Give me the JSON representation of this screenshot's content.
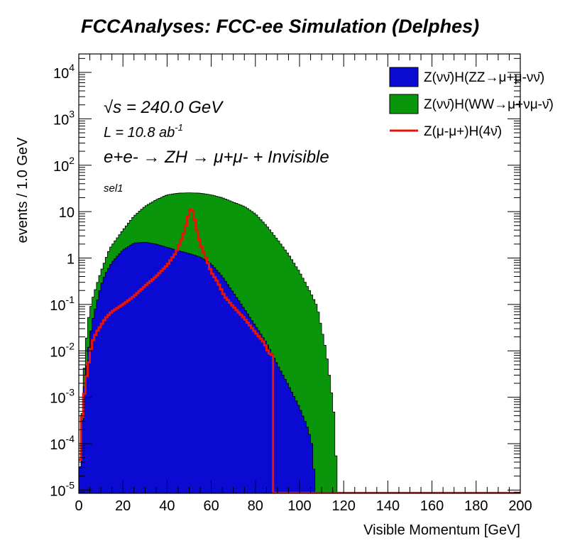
{
  "title": "FCCAnalyses: FCC-ee Simulation (Delphes)",
  "annotations": {
    "sqrt_s_symbol": "√s",
    "sqrt_s_text": " = 240.0 GeV",
    "lumi_text": "L = 10.8 ab",
    "lumi_exp": "-1",
    "process_text": "e+e- → ZH → μ+μ- + Invisible",
    "selection": "sel1"
  },
  "chart_data": {
    "type": "area",
    "xlabel": "Visible Momentum [GeV]",
    "ylabel": "events / 1.0 GeV",
    "xlim": [
      0,
      200
    ],
    "ylim": [
      8.5e-06,
      25000
    ],
    "log_y": true,
    "bin_width": 1,
    "x_ticks": [
      "0",
      "20",
      "40",
      "60",
      "80",
      "100",
      "120",
      "140",
      "160",
      "180",
      "200"
    ],
    "y_ticks": [
      {
        "value": 1e-05,
        "base": "10",
        "exp": "-5"
      },
      {
        "value": 0.0001,
        "base": "10",
        "exp": "-4"
      },
      {
        "value": 0.001,
        "base": "10",
        "exp": "-3"
      },
      {
        "value": 0.01,
        "base": "10",
        "exp": "-2"
      },
      {
        "value": 0.1,
        "base": "10",
        "exp": "-1"
      },
      {
        "value": 1,
        "base": "1",
        "exp": ""
      },
      {
        "value": 10,
        "base": "10",
        "exp": ""
      },
      {
        "value": 100,
        "base": "10",
        "exp": "2"
      },
      {
        "value": 1000,
        "base": "10",
        "exp": "3"
      },
      {
        "value": 10000,
        "base": "10",
        "exp": "4"
      }
    ],
    "legend_position": "top-right",
    "stack_total_points": [
      [
        0,
        1e-05
      ],
      [
        1,
        0.0001
      ],
      [
        2,
        0.002
      ],
      [
        4,
        0.04
      ],
      [
        6,
        0.12
      ],
      [
        8,
        0.25
      ],
      [
        10,
        0.5
      ],
      [
        14,
        1.6
      ],
      [
        20,
        4
      ],
      [
        25,
        8
      ],
      [
        30,
        13
      ],
      [
        35,
        18
      ],
      [
        40,
        23
      ],
      [
        45,
        25
      ],
      [
        50,
        25.5
      ],
      [
        55,
        25
      ],
      [
        60,
        23
      ],
      [
        65,
        20
      ],
      [
        70,
        16
      ],
      [
        75,
        13
      ],
      [
        80,
        9
      ],
      [
        85,
        5
      ],
      [
        90,
        2.5
      ],
      [
        95,
        1.2
      ],
      [
        100,
        0.5
      ],
      [
        105,
        0.18
      ],
      [
        108,
        0.09
      ],
      [
        110,
        0.03
      ],
      [
        112,
        0.01
      ],
      [
        114,
        0.002
      ],
      [
        116,
        0.0003
      ],
      [
        117,
        1e-05
      ]
    ],
    "series": [
      {
        "name": "Z(νν̄)H(ZZ→μ+μ-νν̄)",
        "style": "fill",
        "color": "#0a0ad2",
        "points": [
          [
            0,
            1e-05
          ],
          [
            1,
            0.0001
          ],
          [
            2,
            0.001
          ],
          [
            4,
            0.008
          ],
          [
            6,
            0.04
          ],
          [
            8,
            0.1
          ],
          [
            10,
            0.25
          ],
          [
            12,
            0.45
          ],
          [
            15,
            0.8
          ],
          [
            20,
            1.5
          ],
          [
            25,
            2.1
          ],
          [
            30,
            2.2
          ],
          [
            35,
            2.0
          ],
          [
            40,
            1.7
          ],
          [
            45,
            1.45
          ],
          [
            50,
            1.25
          ],
          [
            55,
            1.05
          ],
          [
            60,
            0.75
          ],
          [
            65,
            0.4
          ],
          [
            70,
            0.18
          ],
          [
            75,
            0.08
          ],
          [
            80,
            0.035
          ],
          [
            85,
            0.015
          ],
          [
            90,
            0.005
          ],
          [
            95,
            0.0018
          ],
          [
            100,
            0.0006
          ],
          [
            104,
            0.0002
          ],
          [
            106,
            8e-05
          ],
          [
            107,
            1e-05
          ]
        ]
      },
      {
        "name": "Z(νν̄)H(WW→μ+νμ-ν̄)",
        "style": "fill",
        "color": "#0a960a",
        "points": []
      },
      {
        "name": "Z(μ-μ+)H(4ν̄)",
        "style": "line",
        "color": "#e6140a",
        "points": [
          [
            0,
            1e-05
          ],
          [
            1,
            0.0002
          ],
          [
            2,
            0.0007
          ],
          [
            3,
            0.002
          ],
          [
            4,
            0.004
          ],
          [
            5,
            0.008
          ],
          [
            6,
            0.015
          ],
          [
            8,
            0.025
          ],
          [
            10,
            0.035
          ],
          [
            12,
            0.05
          ],
          [
            15,
            0.07
          ],
          [
            20,
            0.1
          ],
          [
            25,
            0.15
          ],
          [
            30,
            0.25
          ],
          [
            35,
            0.4
          ],
          [
            40,
            0.7
          ],
          [
            44,
            1.3
          ],
          [
            47,
            2.8
          ],
          [
            49,
            6
          ],
          [
            50,
            10
          ],
          [
            51,
            12
          ],
          [
            52,
            9
          ],
          [
            53,
            5
          ],
          [
            55,
            2
          ],
          [
            58,
            0.9
          ],
          [
            60,
            0.5
          ],
          [
            63,
            0.3
          ],
          [
            66,
            0.15
          ],
          [
            70,
            0.09
          ],
          [
            75,
            0.05
          ],
          [
            80,
            0.025
          ],
          [
            84,
            0.015
          ],
          [
            86,
            0.009
          ],
          [
            87.9,
            0.008
          ],
          [
            88,
            8.7e-06
          ],
          [
            200,
            8.7e-06
          ]
        ]
      }
    ]
  },
  "colors": {
    "zz_fill": "#0a0ad2",
    "ww_fill": "#0a960a",
    "mumu_line": "#e6140a",
    "frame": "#000000"
  }
}
